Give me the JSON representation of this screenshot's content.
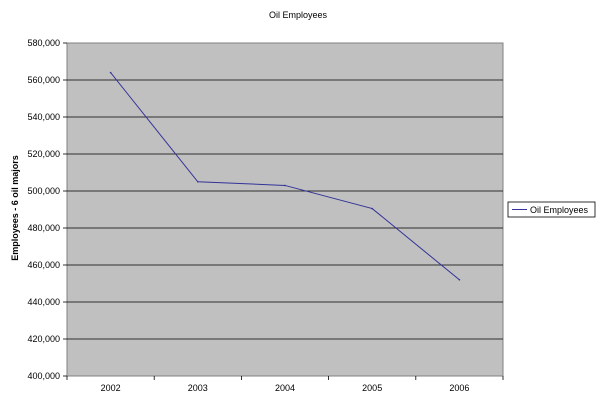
{
  "chart_data": {
    "type": "line",
    "title": "Oil Employees",
    "xlabel": "",
    "ylabel": "Employees - 6 oil majors",
    "categories": [
      "2002",
      "2003",
      "2004",
      "2005",
      "2006"
    ],
    "series": [
      {
        "name": "Oil Employees",
        "values": [
          564000,
          505000,
          503000,
          490500,
          452000
        ]
      }
    ],
    "ylim": [
      400000,
      580000
    ],
    "yticks": [
      400000,
      420000,
      440000,
      460000,
      480000,
      500000,
      520000,
      540000,
      560000,
      580000
    ],
    "ytick_labels": [
      "400,000",
      "420,000",
      "440,000",
      "460,000",
      "480,000",
      "500,000",
      "520,000",
      "540,000",
      "560,000",
      "580,000"
    ],
    "grid": true,
    "legend_position": "right",
    "colors": {
      "plot_background": "#c0c0c0",
      "gridline": "#000000",
      "line": "#333399"
    }
  }
}
